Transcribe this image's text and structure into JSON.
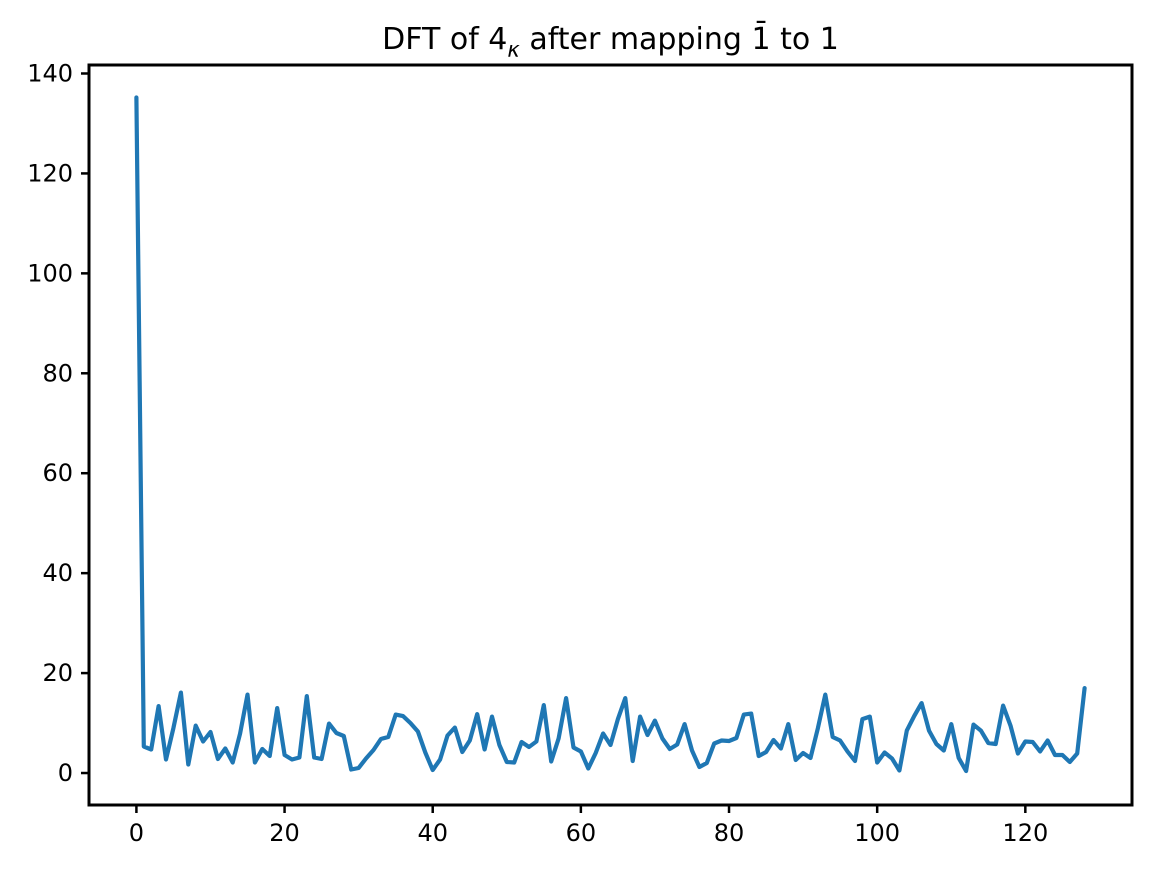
{
  "title": {
    "prefix": "DFT of 4",
    "subscript": "κ",
    "middle": " after mapping ",
    "barred_one": "1̄",
    "suffix": " to 1",
    "full_text": "DFT of 4κ after mapping 1̄ to 1"
  },
  "chart_data": {
    "type": "line",
    "title": "DFT of 4κ after mapping 1̄ to 1",
    "xlabel": "",
    "ylabel": "",
    "x_start": 0,
    "x_step": 1,
    "x_end": 128,
    "values": [
      135.2,
      5.3,
      4.7,
      13.4,
      2.7,
      9.0,
      16.1,
      1.7,
      9.5,
      6.3,
      8.2,
      2.8,
      4.9,
      2.1,
      7.9,
      15.7,
      2.1,
      4.8,
      3.4,
      13.0,
      3.6,
      2.7,
      3.1,
      15.4,
      3.1,
      2.8,
      9.9,
      8.0,
      7.4,
      0.7,
      1.0,
      2.9,
      4.6,
      6.8,
      7.2,
      11.7,
      11.4,
      10.0,
      8.3,
      4.1,
      0.6,
      2.7,
      7.5,
      9.1,
      4.2,
      6.5,
      11.8,
      4.7,
      11.3,
      5.6,
      2.2,
      2.1,
      6.2,
      5.2,
      6.3,
      13.6,
      2.3,
      6.9,
      15.0,
      5.1,
      4.3,
      0.9,
      4.0,
      7.9,
      5.6,
      10.8,
      15.0,
      2.4,
      11.3,
      7.6,
      10.5,
      6.9,
      4.8,
      5.7,
      9.8,
      4.5,
      1.2,
      2.0,
      5.9,
      6.5,
      6.4,
      7.0,
      11.7,
      11.9,
      3.4,
      4.2,
      6.6,
      4.9,
      9.8,
      2.6,
      4.0,
      3.0,
      9.0,
      15.7,
      7.2,
      6.5,
      4.3,
      2.4,
      10.8,
      11.3,
      2.1,
      4.1,
      2.9,
      0.5,
      8.5,
      11.4,
      14.0,
      8.5,
      5.8,
      4.5,
      9.8,
      3.0,
      0.4,
      9.7,
      8.5,
      6.0,
      5.8,
      13.5,
      9.5,
      3.9,
      6.3,
      6.2,
      4.3,
      6.5,
      3.6,
      3.6,
      2.2,
      3.9,
      17.0
    ],
    "xticks": [
      0,
      20,
      40,
      60,
      80,
      100,
      120
    ],
    "yticks": [
      0,
      20,
      40,
      60,
      80,
      100,
      120,
      140
    ],
    "xlim": [
      -6.4,
      134.4
    ],
    "ylim": [
      -6.4,
      141.7
    ],
    "grid": false,
    "legend": "none",
    "line_color": "#1f77b4",
    "axis_color": "#000000",
    "background_color": "#ffffff"
  }
}
